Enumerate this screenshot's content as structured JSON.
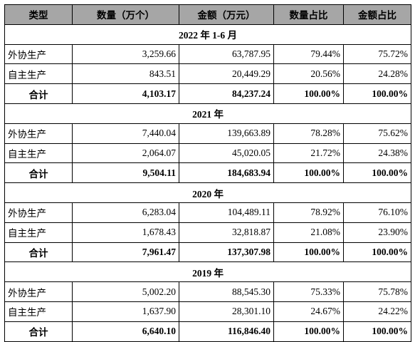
{
  "headers": {
    "type": "类型",
    "qty": "数量（万个）",
    "amount": "金额（万元）",
    "qty_pct": "数量占比",
    "amount_pct": "金额占比"
  },
  "sections": [
    {
      "title": "2022 年 1-6 月",
      "rows": [
        {
          "type": "外协生产",
          "qty": "3,259.66",
          "amount": "63,787.95",
          "qty_pct": "79.44%",
          "amount_pct": "75.72%"
        },
        {
          "type": "自主生产",
          "qty": "843.51",
          "amount": "20,449.29",
          "qty_pct": "20.56%",
          "amount_pct": "24.28%"
        }
      ],
      "total": {
        "type": "合计",
        "qty": "4,103.17",
        "amount": "84,237.24",
        "qty_pct": "100.00%",
        "amount_pct": "100.00%"
      }
    },
    {
      "title": "2021 年",
      "rows": [
        {
          "type": "外协生产",
          "qty": "7,440.04",
          "amount": "139,663.89",
          "qty_pct": "78.28%",
          "amount_pct": "75.62%"
        },
        {
          "type": "自主生产",
          "qty": "2,064.07",
          "amount": "45,020.05",
          "qty_pct": "21.72%",
          "amount_pct": "24.38%"
        }
      ],
      "total": {
        "type": "合计",
        "qty": "9,504.11",
        "amount": "184,683.94",
        "qty_pct": "100.00%",
        "amount_pct": "100.00%"
      }
    },
    {
      "title": "2020 年",
      "rows": [
        {
          "type": "外协生产",
          "qty": "6,283.04",
          "amount": "104,489.11",
          "qty_pct": "78.92%",
          "amount_pct": "76.10%"
        },
        {
          "type": "自主生产",
          "qty": "1,678.43",
          "amount": "32,818.87",
          "qty_pct": "21.08%",
          "amount_pct": "23.90%"
        }
      ],
      "total": {
        "type": "合计",
        "qty": "7,961.47",
        "amount": "137,307.98",
        "qty_pct": "100.00%",
        "amount_pct": "100.00%"
      }
    },
    {
      "title": "2019 年",
      "rows": [
        {
          "type": "外协生产",
          "qty": "5,002.20",
          "amount": "88,545.30",
          "qty_pct": "75.33%",
          "amount_pct": "75.78%"
        },
        {
          "type": "自主生产",
          "qty": "1,637.90",
          "amount": "28,301.10",
          "qty_pct": "24.67%",
          "amount_pct": "24.22%"
        }
      ],
      "total": {
        "type": "合计",
        "qty": "6,640.10",
        "amount": "116,846.40",
        "qty_pct": "100.00%",
        "amount_pct": "100.00%"
      }
    }
  ],
  "chart_data": {
    "type": "table",
    "columns": [
      "类型",
      "数量（万个）",
      "金额（万元）",
      "数量占比",
      "金额占比"
    ],
    "periods": [
      {
        "period": "2022 年 1-6 月",
        "rows": [
          [
            "外协生产",
            "3,259.66",
            "63,787.95",
            "79.44%",
            "75.72%"
          ],
          [
            "自主生产",
            "843.51",
            "20,449.29",
            "20.56%",
            "24.28%"
          ],
          [
            "合计",
            "4,103.17",
            "84,237.24",
            "100.00%",
            "100.00%"
          ]
        ]
      },
      {
        "period": "2021 年",
        "rows": [
          [
            "外协生产",
            "7,440.04",
            "139,663.89",
            "78.28%",
            "75.62%"
          ],
          [
            "自主生产",
            "2,064.07",
            "45,020.05",
            "21.72%",
            "24.38%"
          ],
          [
            "合计",
            "9,504.11",
            "184,683.94",
            "100.00%",
            "100.00%"
          ]
        ]
      },
      {
        "period": "2020 年",
        "rows": [
          [
            "外协生产",
            "6,283.04",
            "104,489.11",
            "78.92%",
            "76.10%"
          ],
          [
            "自主生产",
            "1,678.43",
            "32,818.87",
            "21.08%",
            "23.90%"
          ],
          [
            "合计",
            "7,961.47",
            "137,307.98",
            "100.00%",
            "100.00%"
          ]
        ]
      },
      {
        "period": "2019 年",
        "rows": [
          [
            "外协生产",
            "5,002.20",
            "88,545.30",
            "75.33%",
            "75.78%"
          ],
          [
            "自主生产",
            "1,637.90",
            "28,301.10",
            "24.67%",
            "24.22%"
          ],
          [
            "合计",
            "6,640.10",
            "116,846.40",
            "100.00%",
            "100.00%"
          ]
        ]
      }
    ]
  }
}
